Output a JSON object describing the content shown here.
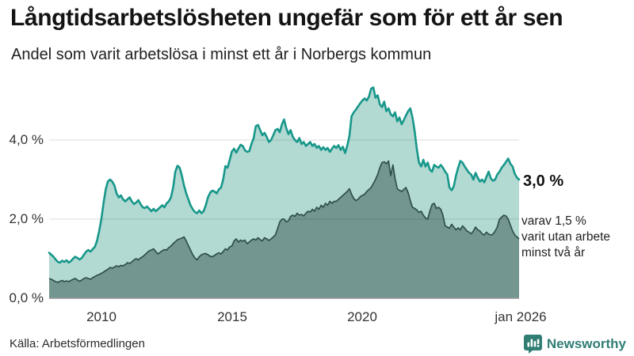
{
  "header": {
    "title": "Långtidsarbetslösheten ungefär som för ett år sen",
    "subtitle": "Andel som varit arbetslösa i minst ett år i Norbergs kommun"
  },
  "footer": {
    "source": "Källa: Arbetsförmedlingen",
    "brand": "Newsworthy"
  },
  "colors": {
    "series1_line": "#17978a",
    "series1_fill": "#b3d9d3",
    "series2_line": "#2f4f4a",
    "series2_fill": "#739690",
    "gridline": "rgba(0,0,0,0.13)",
    "baseline": "#979797",
    "brand_teal": "#317e75"
  },
  "chart_data": {
    "type": "area",
    "title": "Långtidsarbetslösheten ungefär som för ett år sen",
    "subtitle": "Andel som varit arbetslösa i minst ett år i Norbergs kommun",
    "x_domain": [
      "2008-01",
      "2026-01"
    ],
    "x_unit": "month",
    "ylim": [
      0,
      5.6
    ],
    "grid": "horizontal",
    "y_ticks": [
      {
        "label": "0,0 %",
        "value": 0
      },
      {
        "label": "2,0 %",
        "value": 2
      },
      {
        "label": "4,0 %",
        "value": 4
      }
    ],
    "x_ticks": [
      {
        "label": "2010",
        "month": 24
      },
      {
        "label": "2015",
        "month": 84
      },
      {
        "label": "2020",
        "month": 144
      },
      {
        "label": "jan 2026",
        "month": 216
      }
    ],
    "annotations": {
      "end_label": "3,0 %",
      "note_lines": [
        "varav 1,5 %",
        "varit utan arbete",
        "minst två år"
      ]
    },
    "series": [
      {
        "name": "Andel arbetslösa minst ett år",
        "line_color": "#17978a",
        "fill_color": "#b3d9d3",
        "end_value": 3.0,
        "values": [
          1.15,
          1.1,
          1.05,
          0.98,
          0.92,
          0.9,
          0.95,
          0.92,
          0.96,
          0.9,
          0.94,
          1.0,
          1.05,
          1.02,
          0.98,
          1.02,
          1.1,
          1.18,
          1.22,
          1.18,
          1.24,
          1.3,
          1.45,
          1.7,
          2.0,
          2.4,
          2.75,
          2.95,
          3.0,
          2.95,
          2.85,
          2.65,
          2.55,
          2.6,
          2.5,
          2.45,
          2.5,
          2.55,
          2.45,
          2.38,
          2.42,
          2.48,
          2.38,
          2.3,
          2.28,
          2.32,
          2.26,
          2.2,
          2.26,
          2.2,
          2.25,
          2.3,
          2.35,
          2.3,
          2.4,
          2.45,
          2.55,
          2.8,
          3.2,
          3.35,
          3.3,
          3.1,
          2.85,
          2.65,
          2.5,
          2.35,
          2.25,
          2.18,
          2.15,
          2.22,
          2.15,
          2.2,
          2.35,
          2.55,
          2.67,
          2.72,
          2.7,
          2.65,
          2.75,
          2.8,
          3.0,
          3.34,
          3.3,
          3.5,
          3.71,
          3.78,
          3.68,
          3.78,
          3.88,
          3.85,
          3.74,
          3.7,
          3.72,
          3.9,
          4.05,
          4.35,
          4.38,
          4.25,
          4.12,
          4.18,
          4.08,
          3.95,
          4.0,
          4.12,
          4.25,
          4.28,
          4.2,
          4.4,
          4.52,
          4.3,
          4.15,
          4.25,
          4.08,
          4.0,
          3.95,
          4.05,
          3.9,
          3.95,
          3.85,
          3.9,
          3.95,
          3.85,
          3.9,
          3.8,
          3.85,
          3.75,
          3.82,
          3.75,
          3.8,
          3.7,
          3.78,
          3.85,
          3.8,
          3.87,
          3.75,
          3.83,
          3.67,
          3.85,
          4.1,
          4.6,
          4.7,
          4.77,
          4.85,
          4.93,
          5.0,
          5.05,
          5.0,
          5.1,
          5.3,
          5.33,
          5.07,
          5.13,
          4.9,
          4.83,
          4.97,
          4.73,
          4.8,
          4.65,
          4.6,
          4.7,
          4.47,
          4.57,
          4.4,
          4.5,
          4.62,
          4.73,
          4.8,
          4.57,
          4.23,
          3.77,
          3.43,
          3.33,
          3.5,
          3.33,
          3.43,
          3.25,
          3.2,
          3.37,
          3.33,
          3.3,
          3.37,
          3.3,
          3.2,
          3.13,
          2.8,
          2.73,
          2.83,
          3.1,
          3.3,
          3.47,
          3.43,
          3.33,
          3.25,
          3.17,
          3.13,
          3.0,
          3.17,
          3.05,
          2.95,
          3.0,
          2.93,
          3.07,
          3.2,
          3.03,
          2.97,
          3.0,
          3.13,
          3.2,
          3.3,
          3.37,
          3.45,
          3.53,
          3.4,
          3.33,
          3.15,
          3.05,
          3.0
        ]
      },
      {
        "name": "varav utan arbete minst två år",
        "line_color": "#2f4f4a",
        "fill_color": "#739690",
        "end_value": 1.5,
        "values": [
          0.5,
          0.48,
          0.45,
          0.42,
          0.4,
          0.43,
          0.45,
          0.42,
          0.44,
          0.42,
          0.45,
          0.48,
          0.5,
          0.46,
          0.43,
          0.46,
          0.5,
          0.52,
          0.5,
          0.48,
          0.52,
          0.55,
          0.58,
          0.6,
          0.63,
          0.66,
          0.7,
          0.73,
          0.78,
          0.76,
          0.79,
          0.82,
          0.8,
          0.83,
          0.82,
          0.85,
          0.9,
          0.88,
          0.92,
          0.97,
          1.0,
          0.97,
          1.02,
          1.05,
          1.1,
          1.15,
          1.2,
          1.22,
          1.25,
          1.18,
          1.12,
          1.16,
          1.2,
          1.23,
          1.22,
          1.28,
          1.32,
          1.38,
          1.43,
          1.48,
          1.5,
          1.52,
          1.55,
          1.45,
          1.33,
          1.22,
          1.1,
          1.02,
          0.97,
          1.05,
          1.1,
          1.12,
          1.13,
          1.1,
          1.06,
          1.05,
          1.08,
          1.12,
          1.15,
          1.12,
          1.18,
          1.25,
          1.22,
          1.3,
          1.32,
          1.45,
          1.5,
          1.42,
          1.47,
          1.44,
          1.47,
          1.38,
          1.42,
          1.47,
          1.5,
          1.47,
          1.53,
          1.48,
          1.45,
          1.53,
          1.5,
          1.46,
          1.5,
          1.55,
          1.6,
          1.76,
          1.93,
          2.0,
          2.0,
          1.93,
          1.96,
          2.07,
          2.1,
          2.07,
          2.15,
          2.1,
          2.12,
          2.08,
          2.15,
          2.2,
          2.18,
          2.25,
          2.2,
          2.3,
          2.25,
          2.35,
          2.3,
          2.4,
          2.35,
          2.45,
          2.4,
          2.45,
          2.45,
          2.5,
          2.55,
          2.6,
          2.65,
          2.7,
          2.77,
          2.63,
          2.52,
          2.47,
          2.5,
          2.57,
          2.6,
          2.63,
          2.7,
          2.75,
          2.8,
          2.9,
          3.0,
          3.13,
          3.3,
          3.43,
          3.45,
          3.4,
          3.47,
          3.1,
          3.37,
          3.03,
          2.77,
          2.73,
          2.7,
          2.75,
          2.8,
          2.67,
          2.47,
          2.3,
          2.27,
          2.23,
          2.17,
          2.2,
          2.1,
          2.03,
          2.0,
          2.2,
          2.37,
          2.4,
          2.27,
          2.3,
          2.25,
          2.1,
          1.83,
          1.8,
          1.77,
          1.87,
          1.8,
          1.73,
          1.78,
          1.73,
          1.83,
          1.77,
          1.7,
          1.67,
          1.63,
          1.7,
          1.8,
          1.73,
          1.7,
          1.63,
          1.6,
          1.67,
          1.62,
          1.6,
          1.62,
          1.7,
          1.8,
          2.0,
          2.05,
          2.1,
          2.08,
          2.0,
          1.85,
          1.7,
          1.6,
          1.55,
          1.5
        ]
      }
    ]
  }
}
